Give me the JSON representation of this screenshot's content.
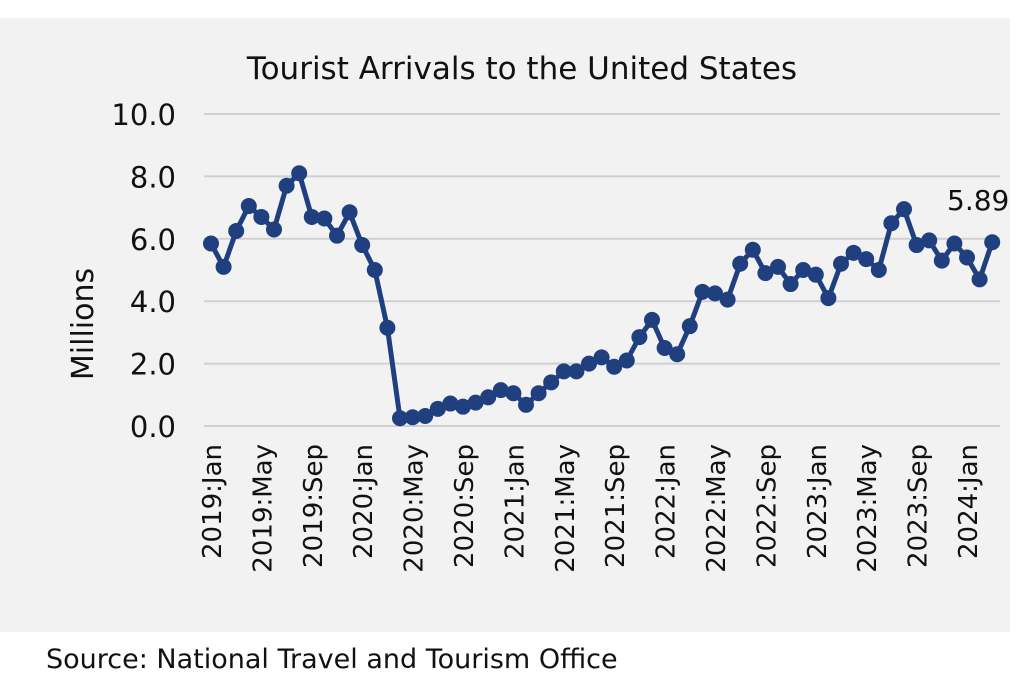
{
  "source": "Source: National Travel and Tourism Office",
  "chart_data": {
    "type": "line",
    "title": "Tourist Arrivals to the United States",
    "ylabel": "Millions",
    "xlabel": "",
    "ylim": [
      0,
      10
    ],
    "yticks": [
      "0.0",
      "2.0",
      "4.0",
      "6.0",
      "8.0",
      "10.0"
    ],
    "grid": true,
    "legend": "none",
    "x_tick_labels": [
      "2019:Jan",
      "2019:May",
      "2019:Sep",
      "2020:Jan",
      "2020:May",
      "2020:Sep",
      "2021:Jan",
      "2021:May",
      "2021:Sep",
      "2022:Jan",
      "2022:May",
      "2022:Sep",
      "2023:Jan",
      "2023:May",
      "2023:Sep",
      "2024:Jan"
    ],
    "x_tick_every": 4,
    "series": [
      {
        "color": "#1f3f7f",
        "x": [
          "2019:Jan",
          "2019:Feb",
          "2019:Mar",
          "2019:Apr",
          "2019:May",
          "2019:Jun",
          "2019:Jul",
          "2019:Aug",
          "2019:Sep",
          "2019:Oct",
          "2019:Nov",
          "2019:Dec",
          "2020:Jan",
          "2020:Feb",
          "2020:Mar",
          "2020:Apr",
          "2020:May",
          "2020:Jun",
          "2020:Jul",
          "2020:Aug",
          "2020:Sep",
          "2020:Oct",
          "2020:Nov",
          "2020:Dec",
          "2021:Jan",
          "2021:Feb",
          "2021:Mar",
          "2021:Apr",
          "2021:May",
          "2021:Jun",
          "2021:Jul",
          "2021:Aug",
          "2021:Sep",
          "2021:Oct",
          "2021:Nov",
          "2021:Dec",
          "2022:Jan",
          "2022:Feb",
          "2022:Mar",
          "2022:Apr",
          "2022:May",
          "2022:Jun",
          "2022:Jul",
          "2022:Aug",
          "2022:Sep",
          "2022:Oct",
          "2022:Nov",
          "2022:Dec",
          "2023:Jan",
          "2023:Feb",
          "2023:Mar",
          "2023:Apr",
          "2023:May",
          "2023:Jun",
          "2023:Jul",
          "2023:Aug",
          "2023:Sep",
          "2023:Oct",
          "2023:Nov",
          "2023:Dec",
          "2024:Jan",
          "2024:Feb",
          "2024:Mar"
        ],
        "values": [
          5.85,
          5.1,
          6.25,
          7.05,
          6.7,
          6.3,
          7.7,
          8.1,
          6.7,
          6.65,
          6.1,
          6.85,
          5.8,
          5.0,
          3.15,
          0.25,
          0.28,
          0.32,
          0.55,
          0.72,
          0.62,
          0.75,
          0.92,
          1.15,
          1.05,
          0.68,
          1.05,
          1.4,
          1.75,
          1.75,
          2.0,
          2.2,
          1.9,
          2.1,
          2.85,
          3.4,
          2.5,
          2.3,
          3.2,
          4.3,
          4.25,
          4.05,
          5.2,
          5.65,
          4.9,
          5.1,
          4.55,
          5.0,
          4.85,
          4.1,
          5.2,
          5.55,
          5.35,
          5.0,
          6.5,
          6.95,
          5.8,
          5.95,
          5.3,
          5.85,
          5.4,
          4.7,
          5.89
        ]
      }
    ],
    "annotations": [
      {
        "text": "5.89",
        "x": "2024:Mar",
        "y": 5.89
      }
    ]
  }
}
